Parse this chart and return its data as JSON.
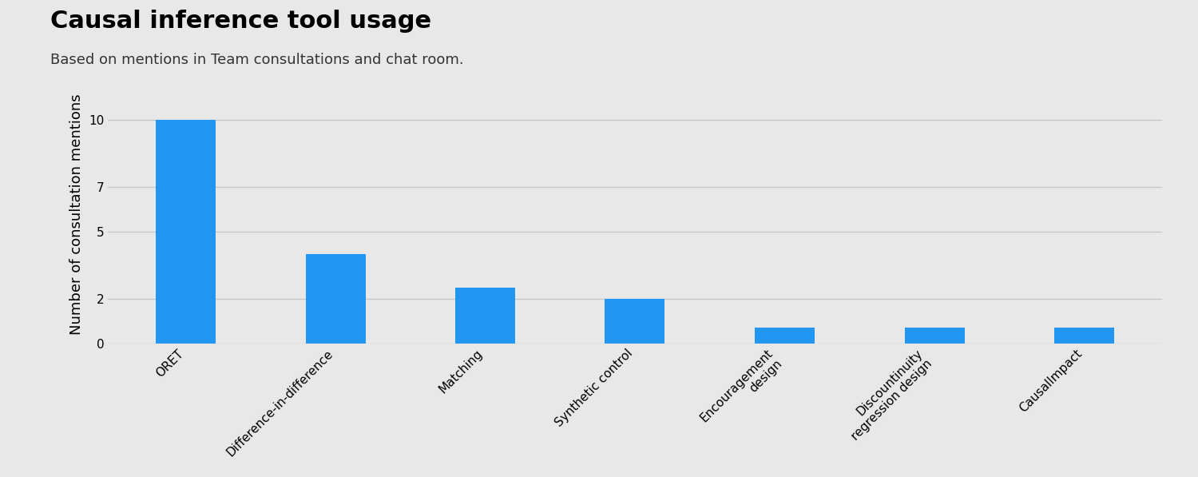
{
  "title": "Causal inference tool usage",
  "subtitle": "Based on mentions in Team consultations and chat room.",
  "ylabel": "Number of consultation mentions",
  "categories": [
    "ORET",
    "Difference-in-difference",
    "Matching",
    "Synthetic control",
    "Encouragement\ndesign",
    "Discountinuity\nregression design",
    "CausalImpact"
  ],
  "values": [
    10,
    4,
    2.5,
    2,
    0.7,
    0.7,
    0.7
  ],
  "bar_color": "#2196F3",
  "background_color": "#E8E8E8",
  "grid_color": "#C8C8C8",
  "yticks": [
    0,
    2,
    5,
    7,
    10
  ],
  "ylim": [
    0,
    11.5
  ],
  "title_fontsize": 22,
  "subtitle_fontsize": 13,
  "ylabel_fontsize": 13,
  "tick_label_fontsize": 11,
  "bar_width": 0.4
}
